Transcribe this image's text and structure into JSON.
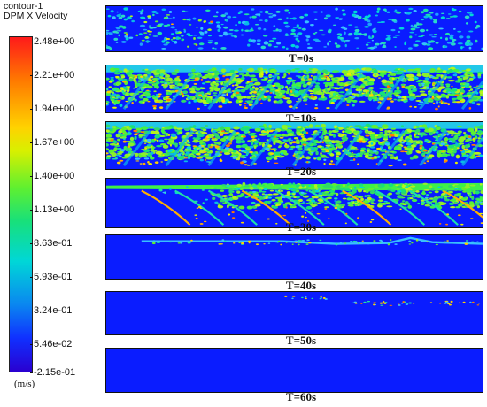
{
  "legend": {
    "title_line1": "contour-1",
    "title_line2": "DPM X Velocity",
    "ticks": [
      "2.48e+00",
      "2.21e+00",
      "1.94e+00",
      "1.67e+00",
      "1.40e+00",
      "1.13e+00",
      "8.63e-01",
      "5.93e-01",
      "3.24e-01",
      "5.46e-02",
      "-2.15e-01"
    ],
    "units": "(m/s)",
    "colors": {
      "max": "#ff1a1a",
      "high": "#ffd200",
      "mid": "#5ff030",
      "low_mid": "#00d7d7",
      "min": "#2a00d0",
      "background_flow": "#0a1cff"
    }
  },
  "panels": [
    {
      "caption": "T=0s",
      "state": "sparse particles, low velocity"
    },
    {
      "caption": "T=10s",
      "state": "dense spray, high velocity"
    },
    {
      "caption": "T=20s",
      "state": "dense spray, high velocity"
    },
    {
      "caption": "T=30s",
      "state": "particles settling"
    },
    {
      "caption": "T=40s",
      "state": "thin band of particles"
    },
    {
      "caption": "T=50s",
      "state": "few scattered particles"
    },
    {
      "caption": "T=60s",
      "state": "no particles"
    }
  ]
}
